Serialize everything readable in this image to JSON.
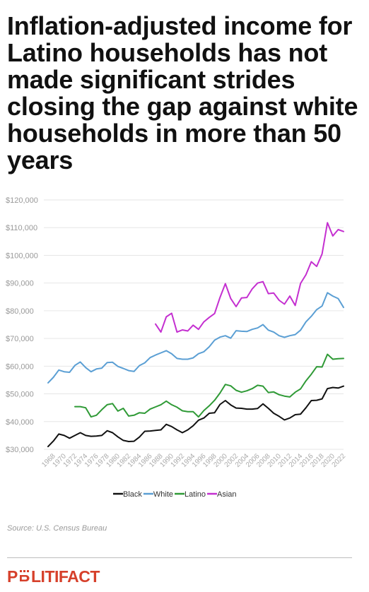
{
  "title": "Inflation-adjusted income for Latino households has not made significant strides closing the gap against white households in more than 50 years",
  "source": "Source: U.S. Census Bureau",
  "logo": "POLITIFACT",
  "chart_data": {
    "type": "line",
    "title": "",
    "xlabel": "",
    "ylabel": "",
    "ylim": [
      30000,
      120000
    ],
    "yticks": [
      30000,
      40000,
      50000,
      60000,
      70000,
      80000,
      90000,
      100000,
      110000,
      120000
    ],
    "ytick_labels": [
      "$30,000",
      "$40,000",
      "$50,000",
      "$60,000",
      "$70,000",
      "$80,000",
      "$90,000",
      "$100,000",
      "$110,000",
      "$120,000"
    ],
    "xlim": [
      1967,
      2022
    ],
    "xticks": [
      1968,
      1970,
      1972,
      1974,
      1976,
      1978,
      1980,
      1982,
      1984,
      1986,
      1988,
      1990,
      1992,
      1994,
      1996,
      1998,
      2000,
      2002,
      2004,
      2006,
      2008,
      2010,
      2012,
      2014,
      2016,
      2018,
      2020,
      2022
    ],
    "grid": "horizontal",
    "legend_position": "bottom",
    "series": [
      {
        "name": "Black",
        "color": "#111111",
        "x": [
          1967,
          1968,
          1969,
          1970,
          1971,
          1972,
          1973,
          1974,
          1975,
          1976,
          1977,
          1978,
          1979,
          1980,
          1981,
          1982,
          1983,
          1984,
          1985,
          1986,
          1987,
          1988,
          1989,
          1990,
          1991,
          1992,
          1993,
          1994,
          1995,
          1996,
          1997,
          1998,
          1999,
          2000,
          2001,
          2002,
          2003,
          2004,
          2005,
          2006,
          2007,
          2008,
          2009,
          2010,
          2011,
          2012,
          2013,
          2014,
          2015,
          2016,
          2017,
          2018,
          2019,
          2020,
          2021,
          2022
        ],
        "values": [
          31000,
          33000,
          35500,
          35000,
          34000,
          35000,
          36000,
          35000,
          34700,
          34800,
          35000,
          36700,
          36000,
          34500,
          33200,
          32800,
          32900,
          34400,
          36500,
          36600,
          36800,
          37000,
          39000,
          38200,
          37000,
          36000,
          37000,
          38500,
          40500,
          41300,
          43000,
          43200,
          46200,
          47600,
          46000,
          44900,
          44800,
          44500,
          44500,
          44700,
          46400,
          44800,
          43000,
          41900,
          40600,
          41300,
          42500,
          42700,
          45000,
          47600,
          47700,
          48200,
          51900,
          52300,
          52100,
          52800
        ]
      },
      {
        "name": "White",
        "color": "#5b9fd4",
        "x": [
          1967,
          1968,
          1969,
          1970,
          1971,
          1972,
          1973,
          1974,
          1975,
          1976,
          1977,
          1978,
          1979,
          1980,
          1981,
          1982,
          1983,
          1984,
          1985,
          1986,
          1987,
          1988,
          1989,
          1990,
          1991,
          1992,
          1993,
          1994,
          1995,
          1996,
          1997,
          1998,
          1999,
          2000,
          2001,
          2002,
          2003,
          2004,
          2005,
          2006,
          2007,
          2008,
          2009,
          2010,
          2011,
          2012,
          2013,
          2014,
          2015,
          2016,
          2017,
          2018,
          2019,
          2020,
          2021,
          2022
        ],
        "values": [
          54000,
          56000,
          58600,
          58000,
          57800,
          60300,
          61500,
          59500,
          58000,
          59000,
          59300,
          61300,
          61400,
          59900,
          59200,
          58400,
          58100,
          60200,
          61200,
          63100,
          64000,
          64800,
          65600,
          64500,
          62800,
          62500,
          62500,
          63000,
          64500,
          65200,
          67000,
          69400,
          70500,
          71000,
          70100,
          72800,
          72600,
          72500,
          73300,
          73800,
          75000,
          73000,
          72300,
          71000,
          70400,
          71000,
          71400,
          73000,
          76000,
          78000,
          80400,
          81700,
          86500,
          85300,
          84400,
          81200
        ]
      },
      {
        "name": "Latino",
        "color": "#2f9a36",
        "x": [
          1972,
          1973,
          1974,
          1975,
          1976,
          1977,
          1978,
          1979,
          1980,
          1981,
          1982,
          1983,
          1984,
          1985,
          1986,
          1987,
          1988,
          1989,
          1990,
          1991,
          1992,
          1993,
          1994,
          1995,
          1996,
          1997,
          1998,
          1999,
          2000,
          2001,
          2002,
          2003,
          2004,
          2005,
          2006,
          2007,
          2008,
          2009,
          2010,
          2011,
          2012,
          2013,
          2014,
          2015,
          2016,
          2017,
          2018,
          2019,
          2020,
          2021,
          2022
        ],
        "values": [
          45400,
          45400,
          45000,
          41700,
          42300,
          44300,
          46100,
          46500,
          43800,
          44800,
          42000,
          42300,
          43200,
          43000,
          44500,
          45300,
          46100,
          47400,
          46100,
          45200,
          43900,
          43600,
          43600,
          41700,
          44000,
          45700,
          47700,
          50300,
          53400,
          52900,
          51300,
          50600,
          51100,
          51900,
          53100,
          52800,
          50500,
          50700,
          49700,
          49200,
          48900,
          50600,
          51800,
          54700,
          57100,
          59800,
          59700,
          64300,
          62500,
          62700,
          62800
        ]
      },
      {
        "name": "Asian",
        "color": "#c42fd0",
        "x": [
          1987,
          1988,
          1989,
          1990,
          1991,
          1992,
          1993,
          1994,
          1995,
          1996,
          1997,
          1998,
          1999,
          2000,
          2001,
          2002,
          2003,
          2004,
          2005,
          2006,
          2007,
          2008,
          2009,
          2010,
          2011,
          2012,
          2013,
          2014,
          2015,
          2016,
          2017,
          2018,
          2019,
          2020,
          2021,
          2022
        ],
        "values": [
          75200,
          72300,
          77800,
          79100,
          72300,
          73100,
          72700,
          74800,
          73300,
          76000,
          77600,
          79000,
          84800,
          89800,
          84400,
          81500,
          84600,
          84800,
          87900,
          90000,
          90500,
          86200,
          86400,
          83800,
          82400,
          85300,
          81900,
          89900,
          93000,
          97700,
          96000,
          100500,
          111800,
          107000,
          109300,
          108600
        ]
      }
    ]
  }
}
